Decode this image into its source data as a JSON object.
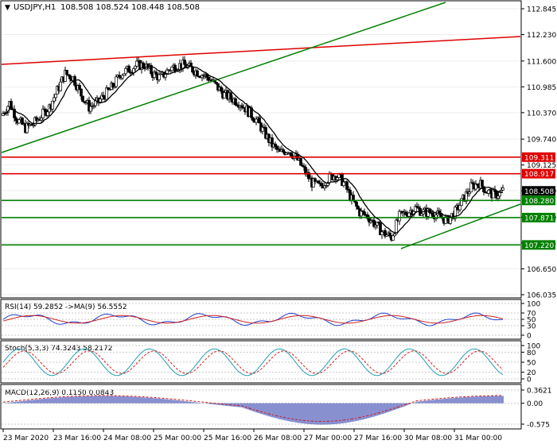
{
  "header": {
    "symbol": "USDJPY,H1",
    "ohlc": "108.508 108.524 108.448 108.508"
  },
  "colors": {
    "bull": "#ffffff",
    "bear": "#000000",
    "grid": "#c8c8c8",
    "support": "#008000",
    "resistance": "#e00000",
    "ma": "#000000",
    "rsi": "#1f3fd0",
    "signal": "#d02020",
    "stoch_main": "#20a0b0",
    "stoch_signal": "#d02020",
    "macd_hist": "#1020a0"
  },
  "price_axis": {
    "ticks": [
      "112.845",
      "112.230",
      "111.600",
      "110.985",
      "110.370",
      "109.740",
      "109.125",
      "108.510",
      "107.880",
      "107.265",
      "106.650",
      "106.035"
    ]
  },
  "levels": [
    {
      "value": 109.311,
      "label": "109.311",
      "type": "resistance"
    },
    {
      "value": 108.917,
      "label": "108.917",
      "type": "resistance"
    },
    {
      "value": 108.508,
      "label": "108.508",
      "type": "current"
    },
    {
      "value": 108.28,
      "label": "108.280",
      "type": "support"
    },
    {
      "value": 107.871,
      "label": "107.871",
      "type": "support"
    },
    {
      "value": 107.22,
      "label": "107.220",
      "type": "support"
    }
  ],
  "time_axis": [
    "23 Mar 2020",
    "23 Mar 16:00",
    "24 Mar 08:00",
    "25 Mar 00:00",
    "25 Mar 16:00",
    "26 Mar 08:00",
    "27 Mar 00:00",
    "27 Mar 16:00",
    "30 Mar 08:00",
    "31 Mar 00:00"
  ],
  "rsi": {
    "label": "RSI(14) 59.2852  ->MA(9) 56.5552",
    "ticks": [
      "100",
      "70",
      "50",
      "30",
      "0"
    ]
  },
  "stoch": {
    "label": "Stoch(5,3,3) 74.3243 58.2172",
    "ticks": [
      "100",
      "80",
      "50",
      "20",
      "0"
    ]
  },
  "macd": {
    "label": "MACD(12,26,9) 0.1150 0.0843",
    "ticks": [
      "0.3621",
      "0.00",
      "-0.575"
    ]
  },
  "chart_data": {
    "type": "line",
    "title": "USDJPY,H1",
    "series": [
      {
        "name": "USDJPY",
        "x": [
          0,
          10,
          20,
          30,
          40,
          50,
          60,
          70,
          80,
          90,
          100,
          110,
          120,
          130,
          140,
          150,
          160,
          170,
          180,
          190,
          200,
          210,
          220,
          230,
          240,
          250,
          260,
          270,
          280,
          290,
          300,
          310,
          320,
          330,
          340,
          350,
          360,
          370,
          380,
          390,
          400,
          410,
          420,
          430,
          440,
          450,
          460,
          470,
          480,
          490,
          500,
          510,
          520,
          530,
          540,
          550,
          560,
          570,
          580,
          590,
          600,
          610,
          620,
          630
        ],
        "values": [
          110.3,
          110.6,
          110.2,
          110.0,
          110.1,
          110.3,
          110.5,
          110.9,
          111.3,
          111.2,
          110.8,
          110.5,
          110.6,
          110.8,
          111.0,
          111.3,
          111.4,
          111.5,
          111.5,
          111.3,
          111.2,
          111.4,
          111.5,
          111.5,
          111.4,
          111.3,
          111.2,
          111.0,
          110.8,
          110.7,
          110.6,
          110.4,
          110.2,
          109.9,
          109.6,
          109.4,
          109.5,
          109.3,
          109.0,
          108.7,
          108.6,
          108.8,
          108.9,
          108.7,
          108.3,
          108.0,
          107.9,
          107.7,
          107.5,
          107.4,
          107.9,
          108.0,
          108.1,
          108.0,
          108.0,
          107.9,
          107.8,
          108.0,
          108.3,
          108.6,
          108.7,
          108.5,
          108.4,
          108.508
        ]
      }
    ],
    "ylim": [
      106.035,
      112.845
    ]
  }
}
